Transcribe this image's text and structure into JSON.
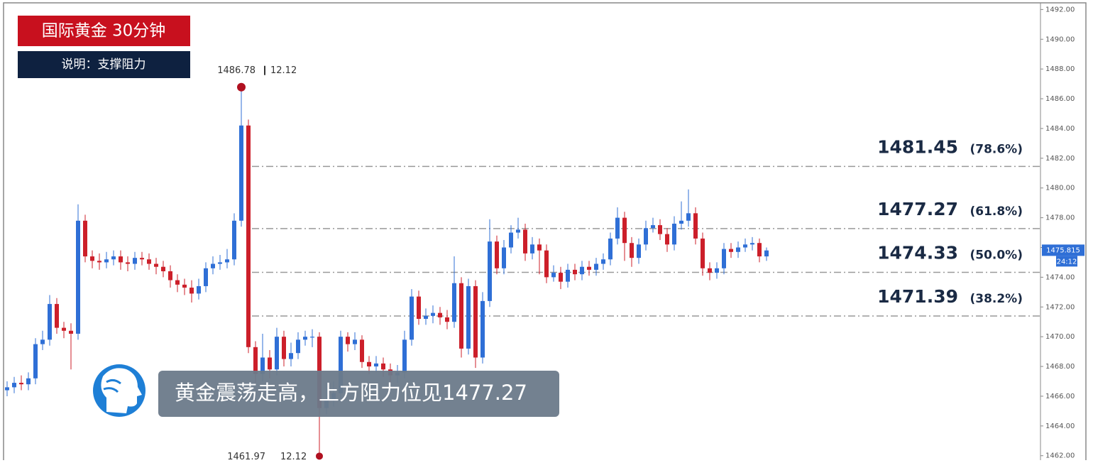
{
  "chart_data": {
    "type": "candlestick",
    "title": "国际黄金 30分钟",
    "subtitle": "说明：支撑阻力",
    "caption": "黄金震荡走高，上方阻力位见1477.27",
    "up_color": "#2f6fd6",
    "down_color": "#cc1f2a",
    "open": [
      1466.4,
      1466.6,
      1466.9,
      1466.8,
      1467.2,
      1469.5,
      1469.8,
      1472.2,
      1470.6,
      1470.4,
      1470.2,
      1477.8,
      1475.4,
      1475.1,
      1475.0,
      1475.2,
      1475.4,
      1475.0,
      1474.9,
      1475.3,
      1475.2,
      1474.9,
      1474.7,
      1474.4,
      1473.8,
      1473.5,
      1473.3,
      1472.9,
      1473.4,
      1474.6,
      1474.9,
      1475.0,
      1475.2,
      1477.8,
      1484.2,
      1469.3,
      1467.5,
      1468.6,
      1467.8,
      1470.0,
      1468.5,
      1468.9,
      1469.8,
      1470.0,
      1470.0,
      1465.2,
      1465.8,
      1466.2,
      1470.0,
      1469.5,
      1469.8,
      1468.3,
      1468.0,
      1468.2,
      1467.8,
      1467.4,
      1467.6,
      1469.8,
      1472.7,
      1471.2,
      1471.4,
      1471.6,
      1471.3,
      1471.0,
      1473.6,
      1469.2,
      1473.4,
      1468.6,
      1472.4,
      1476.4,
      1474.6,
      1476.0,
      1477.0,
      1477.2,
      1475.6,
      1476.2,
      1475.8,
      1474.0,
      1474.3,
      1473.7,
      1474.5,
      1474.2,
      1474.7,
      1474.5,
      1474.9,
      1475.2,
      1476.6,
      1478.0,
      1476.3,
      1475.3,
      1476.2,
      1477.3,
      1477.5,
      1476.9,
      1476.2,
      1477.6,
      1477.8,
      1478.3,
      1476.6,
      1474.6,
      1474.3,
      1474.6,
      1475.9,
      1475.7,
      1476.0,
      1476.2,
      1476.3,
      1475.4
    ],
    "high": [
      1467.0,
      1467.3,
      1467.4,
      1467.6,
      1469.9,
      1470.4,
      1472.8,
      1472.6,
      1471.0,
      1470.9,
      1478.9,
      1478.2,
      1475.8,
      1475.6,
      1475.7,
      1475.8,
      1475.8,
      1475.4,
      1475.7,
      1475.7,
      1475.6,
      1475.3,
      1475.1,
      1474.8,
      1474.2,
      1473.9,
      1473.8,
      1473.9,
      1475.0,
      1475.4,
      1475.5,
      1475.9,
      1478.3,
      1486.78,
      1484.6,
      1469.7,
      1470.2,
      1469.1,
      1470.6,
      1470.4,
      1469.6,
      1470.3,
      1470.4,
      1470.5,
      1470.3,
      1466.9,
      1467.0,
      1470.4,
      1470.3,
      1470.3,
      1470.1,
      1468.7,
      1468.7,
      1468.6,
      1468.2,
      1468.1,
      1470.4,
      1473.2,
      1473.1,
      1471.9,
      1472.1,
      1472.0,
      1471.8,
      1475.4,
      1474.0,
      1473.9,
      1473.8,
      1473.0,
      1477.9,
      1476.8,
      1476.5,
      1477.5,
      1478.0,
      1477.6,
      1476.7,
      1476.6,
      1476.2,
      1474.8,
      1474.7,
      1474.9,
      1474.9,
      1475.1,
      1475.1,
      1475.3,
      1475.6,
      1477.0,
      1478.7,
      1478.4,
      1476.7,
      1476.6,
      1477.8,
      1478.0,
      1477.9,
      1477.3,
      1478.1,
      1479.1,
      1479.9,
      1478.7,
      1477.0,
      1475.0,
      1475.0,
      1476.3,
      1476.3,
      1476.4,
      1476.6,
      1476.7,
      1476.6,
      1476.0
    ],
    "low": [
      1466.0,
      1466.2,
      1466.4,
      1466.4,
      1466.8,
      1469.1,
      1469.4,
      1470.2,
      1469.9,
      1467.8,
      1469.8,
      1475.0,
      1474.6,
      1474.5,
      1474.6,
      1474.8,
      1474.5,
      1474.4,
      1474.5,
      1474.8,
      1474.5,
      1474.2,
      1474.0,
      1473.3,
      1473.0,
      1472.8,
      1472.3,
      1472.5,
      1473.0,
      1474.2,
      1474.5,
      1474.6,
      1474.8,
      1477.4,
      1468.9,
      1466.9,
      1467.0,
      1467.2,
      1467.4,
      1468.0,
      1468.0,
      1468.5,
      1469.4,
      1469.3,
      1461.97,
      1464.8,
      1465.3,
      1465.8,
      1469.0,
      1469.1,
      1467.9,
      1467.5,
      1467.6,
      1467.3,
      1466.9,
      1466.9,
      1467.2,
      1469.4,
      1470.8,
      1470.8,
      1470.9,
      1470.8,
      1470.5,
      1470.6,
      1468.6,
      1468.8,
      1467.9,
      1468.2,
      1472.0,
      1474.2,
      1474.2,
      1475.6,
      1476.6,
      1475.1,
      1475.2,
      1474.2,
      1473.6,
      1473.7,
      1473.2,
      1473.3,
      1473.8,
      1473.8,
      1474.1,
      1474.1,
      1474.5,
      1474.8,
      1476.2,
      1475.1,
      1474.7,
      1474.9,
      1475.8,
      1477.0,
      1476.5,
      1475.7,
      1475.8,
      1477.2,
      1477.4,
      1476.2,
      1474.1,
      1473.8,
      1473.9,
      1474.2,
      1475.3,
      1475.3,
      1475.7,
      1475.8,
      1475.0,
      1475.1
    ],
    "close": [
      1466.6,
      1466.9,
      1466.8,
      1467.2,
      1469.5,
      1469.8,
      1472.2,
      1470.6,
      1470.4,
      1470.2,
      1477.8,
      1475.4,
      1475.1,
      1475.0,
      1475.2,
      1475.4,
      1475.0,
      1474.9,
      1475.3,
      1475.2,
      1474.9,
      1474.7,
      1474.4,
      1473.8,
      1473.5,
      1473.3,
      1472.9,
      1473.4,
      1474.6,
      1474.9,
      1475.0,
      1475.2,
      1477.8,
      1484.2,
      1469.3,
      1467.5,
      1468.6,
      1467.8,
      1470.0,
      1468.5,
      1468.9,
      1469.8,
      1470.0,
      1470.0,
      1465.2,
      1465.8,
      1466.2,
      1470.0,
      1469.5,
      1469.8,
      1468.3,
      1468.0,
      1468.2,
      1467.8,
      1467.4,
      1467.6,
      1469.8,
      1472.7,
      1471.2,
      1471.4,
      1471.6,
      1471.3,
      1471.0,
      1473.6,
      1469.2,
      1473.4,
      1468.6,
      1472.4,
      1476.4,
      1474.6,
      1476.0,
      1477.0,
      1477.2,
      1475.6,
      1476.2,
      1475.8,
      1474.0,
      1474.3,
      1473.7,
      1474.5,
      1474.2,
      1474.7,
      1474.5,
      1474.9,
      1475.2,
      1476.6,
      1478.0,
      1476.3,
      1475.3,
      1476.2,
      1477.3,
      1477.5,
      1476.9,
      1476.2,
      1477.6,
      1477.8,
      1478.3,
      1476.6,
      1474.6,
      1474.3,
      1474.6,
      1475.9,
      1475.7,
      1476.0,
      1476.2,
      1476.3,
      1475.4,
      1475.8
    ],
    "ylim": [
      1461.7,
      1492.4
    ],
    "yticks": [
      {
        "value": 1462,
        "label": "1462.00"
      },
      {
        "value": 1464,
        "label": "1464.00"
      },
      {
        "value": 1466,
        "label": "1466.00"
      },
      {
        "value": 1468,
        "label": "1468.00"
      },
      {
        "value": 1470,
        "label": "1470.00"
      },
      {
        "value": 1472,
        "label": "1472.00"
      },
      {
        "value": 1474,
        "label": "1474.00"
      },
      {
        "value": 1476,
        "label": "1476.00"
      },
      {
        "value": 1478,
        "label": "1478.00"
      },
      {
        "value": 1480,
        "label": "1480.00"
      },
      {
        "value": 1482,
        "label": "1482.00"
      },
      {
        "value": 1484,
        "label": "1484.00"
      },
      {
        "value": 1486,
        "label": "1486.00"
      },
      {
        "value": 1488,
        "label": "1488.00"
      },
      {
        "value": 1490,
        "label": "1490.00"
      },
      {
        "value": 1492,
        "label": "1492.00"
      }
    ],
    "levels": [
      {
        "price": 1481.45,
        "ratio": "(78.6%)"
      },
      {
        "price": 1477.27,
        "ratio": "(61.8%)"
      },
      {
        "price": 1474.33,
        "ratio": "(50.0%)"
      },
      {
        "price": 1471.39,
        "ratio": "(38.2%)"
      }
    ],
    "high_label_date": "12.12",
    "low_label_date": "12.12",
    "last_price": 1475.815,
    "countdown": "24:12"
  }
}
